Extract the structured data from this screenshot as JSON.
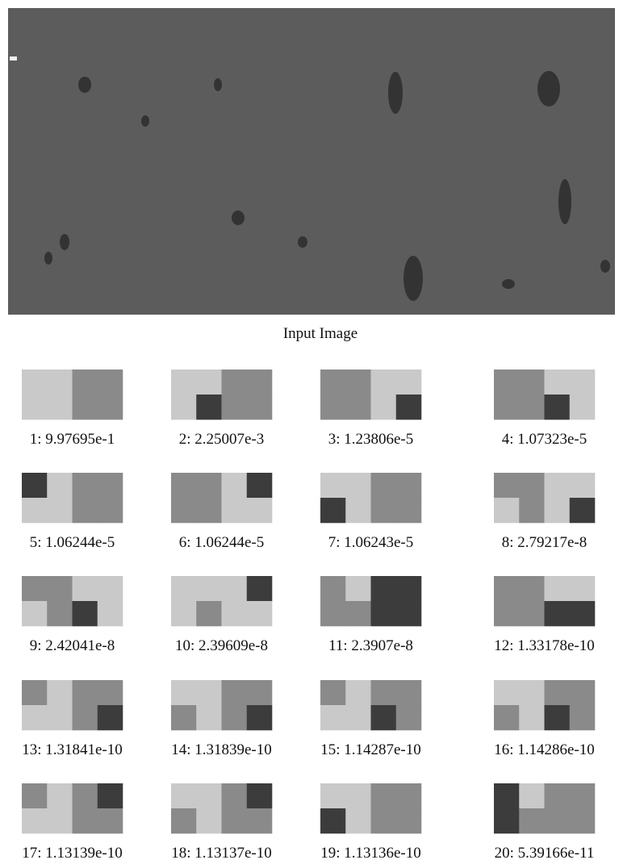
{
  "figure": {
    "caption": "Input Image",
    "tiles": [
      {
        "label": "1: 9.97695e-1"
      },
      {
        "label": "2: 2.25007e-3"
      },
      {
        "label": "3: 1.23806e-5"
      },
      {
        "label": "4: 1.07323e-5"
      },
      {
        "label": "5: 1.06244e-5"
      },
      {
        "label": "6: 1.06244e-5"
      },
      {
        "label": "7: 1.06243e-5"
      },
      {
        "label": "8: 2.79217e-8"
      },
      {
        "label": "9: 2.42041e-8"
      },
      {
        "label": "10: 2.39609e-8"
      },
      {
        "label": "11: 2.3907e-8"
      },
      {
        "label": "12: 1.33178e-10"
      },
      {
        "label": "13: 1.31841e-10"
      },
      {
        "label": "14: 1.31839e-10"
      },
      {
        "label": "15: 1.14287e-10"
      },
      {
        "label": "16: 1.14286e-10"
      },
      {
        "label": "17: 1.13139e-10"
      },
      {
        "label": "18: 1.13137e-10"
      },
      {
        "label": "19: 1.13136e-10"
      },
      {
        "label": "20: 5.39166e-11"
      }
    ]
  }
}
